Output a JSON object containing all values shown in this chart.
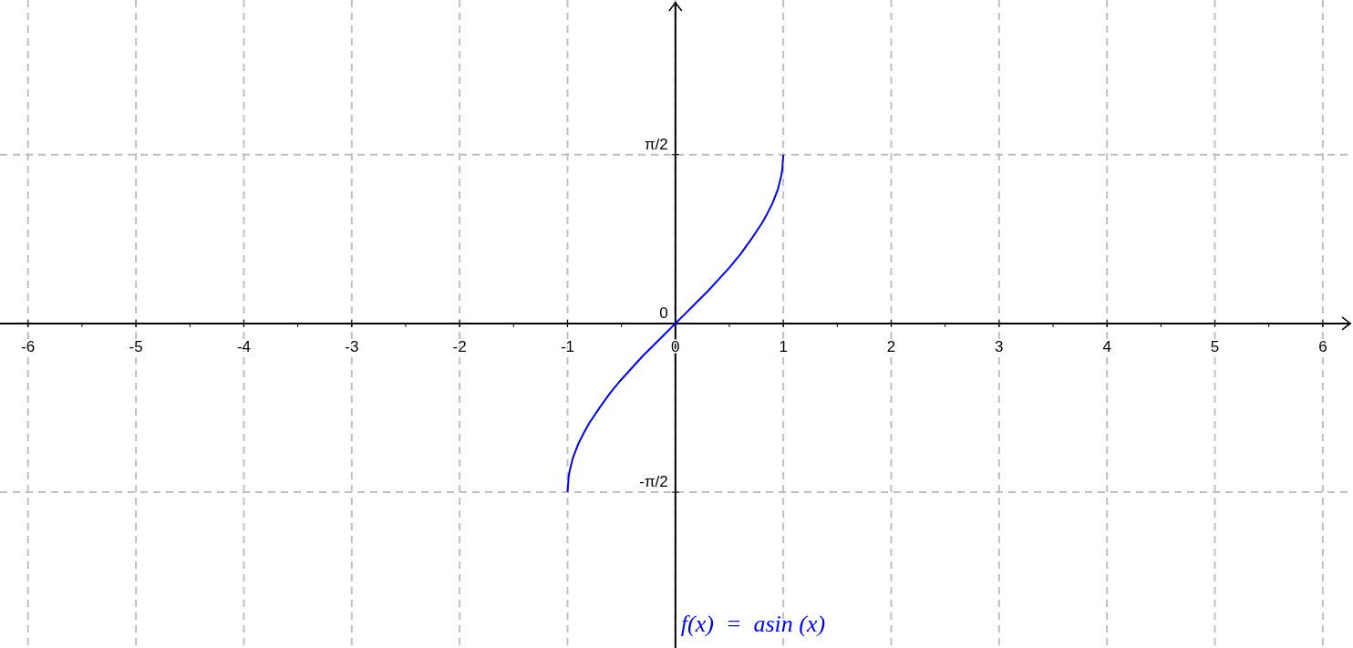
{
  "chart_data": {
    "type": "line",
    "x": [
      -1,
      -0.99,
      -0.98,
      -0.95,
      -0.9,
      -0.85,
      -0.8,
      -0.7,
      -0.6,
      -0.5,
      -0.4,
      -0.3,
      -0.2,
      -0.1,
      0,
      0.1,
      0.2,
      0.3,
      0.4,
      0.5,
      0.6,
      0.7,
      0.8,
      0.85,
      0.9,
      0.95,
      0.98,
      0.99,
      1
    ],
    "series": [
      {
        "color": "#0000ff",
        "values": [
          -1.57,
          -1.43,
          -1.37,
          -1.25,
          -1.12,
          -1.02,
          -0.93,
          -0.78,
          -0.64,
          -0.52,
          -0.41,
          -0.3,
          -0.2,
          -0.1,
          0,
          0.1,
          0.2,
          0.3,
          0.41,
          0.52,
          0.64,
          0.78,
          0.93,
          1.02,
          1.12,
          1.25,
          1.37,
          1.43,
          1.57
        ]
      }
    ],
    "xlim": [
      -6.26,
      6.28
    ],
    "ylim": [
      -3.02,
      3.01
    ],
    "xticks": [
      -6,
      -5,
      -4,
      -3,
      -2,
      -1,
      0,
      1,
      2,
      3,
      4,
      5,
      6
    ],
    "yticks": [
      {
        "value": -1.5708,
        "label": "-π/2"
      },
      0,
      {
        "value": 1.5708,
        "label": "π/2"
      }
    ],
    "grid": true,
    "marker": "none",
    "line_style": "solid",
    "annotations": [
      "f(x)  =  asin (x)"
    ]
  }
}
